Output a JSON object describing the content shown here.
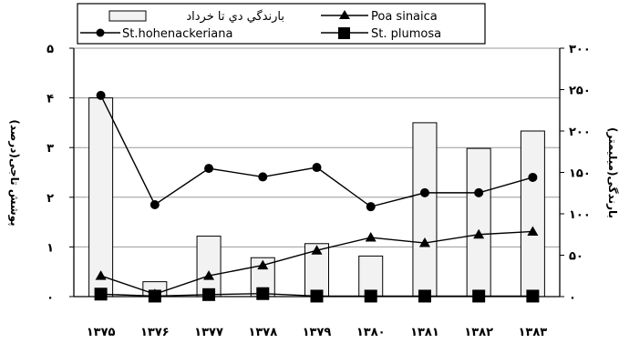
{
  "chart_data": {
    "type": "bar",
    "categories": [
      "۱۳۷۵",
      "۱۳۷۶",
      "۱۳۷۷",
      "۱۳۷۸",
      "۱۳۷۹",
      "۱۳۸۰",
      "۱۳۸۱",
      "۱۳۸۲",
      "۱۳۸۳"
    ],
    "left_axis": {
      "title": "پوشش تاجی(درصد)",
      "range": [
        0,
        5
      ],
      "ticks": [
        0,
        1,
        2,
        3,
        4,
        5
      ],
      "tick_labels": [
        "۰",
        "۱",
        "۲",
        "۳",
        "۴",
        "۵"
      ]
    },
    "right_axis": {
      "title": "بارندگی(میلیمتر)",
      "range": [
        0,
        300
      ],
      "ticks": [
        0,
        50,
        100,
        150,
        200,
        250,
        300
      ],
      "tick_labels": [
        "۰",
        "۵۰",
        "۱۰۰",
        "۱۵۰",
        "۲۰۰",
        "۲۵۰",
        "۳۰۰"
      ]
    },
    "grid": true,
    "legend_position": "top",
    "series": [
      {
        "name": "بارندگي دي تا خرداد",
        "type": "bar",
        "axis": "right",
        "color": "#f2f2f2",
        "values": [
          240,
          18,
          73,
          47,
          64,
          49,
          210,
          179,
          200
        ]
      },
      {
        "name": "St.hohenackeriana",
        "type": "line",
        "marker": "circle",
        "axis": "left",
        "color": "#000000",
        "values": [
          4.05,
          1.85,
          2.58,
          2.41,
          2.6,
          1.81,
          2.09,
          2.09,
          2.4
        ]
      },
      {
        "name": "Poa sinaica",
        "type": "line",
        "marker": "triangle",
        "axis": "left",
        "color": "#000000",
        "values": [
          0.42,
          0.05,
          0.42,
          0.63,
          0.93,
          1.19,
          1.08,
          1.25,
          1.31
        ]
      },
      {
        "name": "St. plumosa",
        "type": "line",
        "marker": "square",
        "axis": "left",
        "color": "#000000",
        "values": [
          0.05,
          0.01,
          0.04,
          0.06,
          0.01,
          0.01,
          0.01,
          0.01,
          0.01
        ]
      }
    ]
  }
}
